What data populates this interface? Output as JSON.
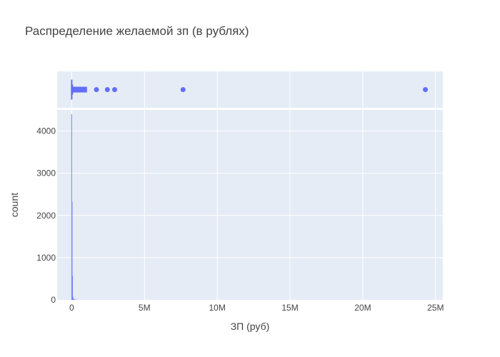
{
  "chart_data": {
    "type": "histogram",
    "title": "Распределение желаемой зп (в рублях)",
    "xlabel": "ЗП (руб)",
    "ylabel": "count",
    "colors": {
      "plot_bg": "#e5ecf6",
      "grid": "#ffffff",
      "series": "#636efa",
      "text": "#444444"
    },
    "xlim": [
      -1000000,
      25500000
    ],
    "ylim": [
      0,
      4500
    ],
    "x_ticks": [
      {
        "value": 0,
        "label": "0"
      },
      {
        "value": 5000000,
        "label": "5M"
      },
      {
        "value": 10000000,
        "label": "10M"
      },
      {
        "value": 15000000,
        "label": "15M"
      },
      {
        "value": 20000000,
        "label": "20M"
      },
      {
        "value": 25000000,
        "label": "25M"
      }
    ],
    "y_ticks": [
      {
        "value": 0,
        "label": "0"
      },
      {
        "value": 1000,
        "label": "1000"
      },
      {
        "value": 2000,
        "label": "2000"
      },
      {
        "value": 3000,
        "label": "3000"
      },
      {
        "value": 4000,
        "label": "4000"
      }
    ],
    "histogram_bins": [
      {
        "x0": -25000,
        "x1": 25000,
        "count": 4400
      },
      {
        "x0": 25000,
        "x1": 50000,
        "count": 2320
      },
      {
        "x0": 50000,
        "x1": 75000,
        "count": 570
      },
      {
        "x0": 75000,
        "x1": 100000,
        "count": 80
      },
      {
        "x0": 100000,
        "x1": 150000,
        "count": 35
      },
      {
        "x0": 150000,
        "x1": 250000,
        "count": 12
      },
      {
        "x0": 250000,
        "x1": 400000,
        "count": 5
      }
    ],
    "strip_outliers": [
      {
        "x": 1700000
      },
      {
        "x": 2450000
      },
      {
        "x": 2950000
      },
      {
        "x": 7650000
      },
      {
        "x": 24300000
      }
    ],
    "strip_box_range": [
      0,
      1050000
    ]
  }
}
